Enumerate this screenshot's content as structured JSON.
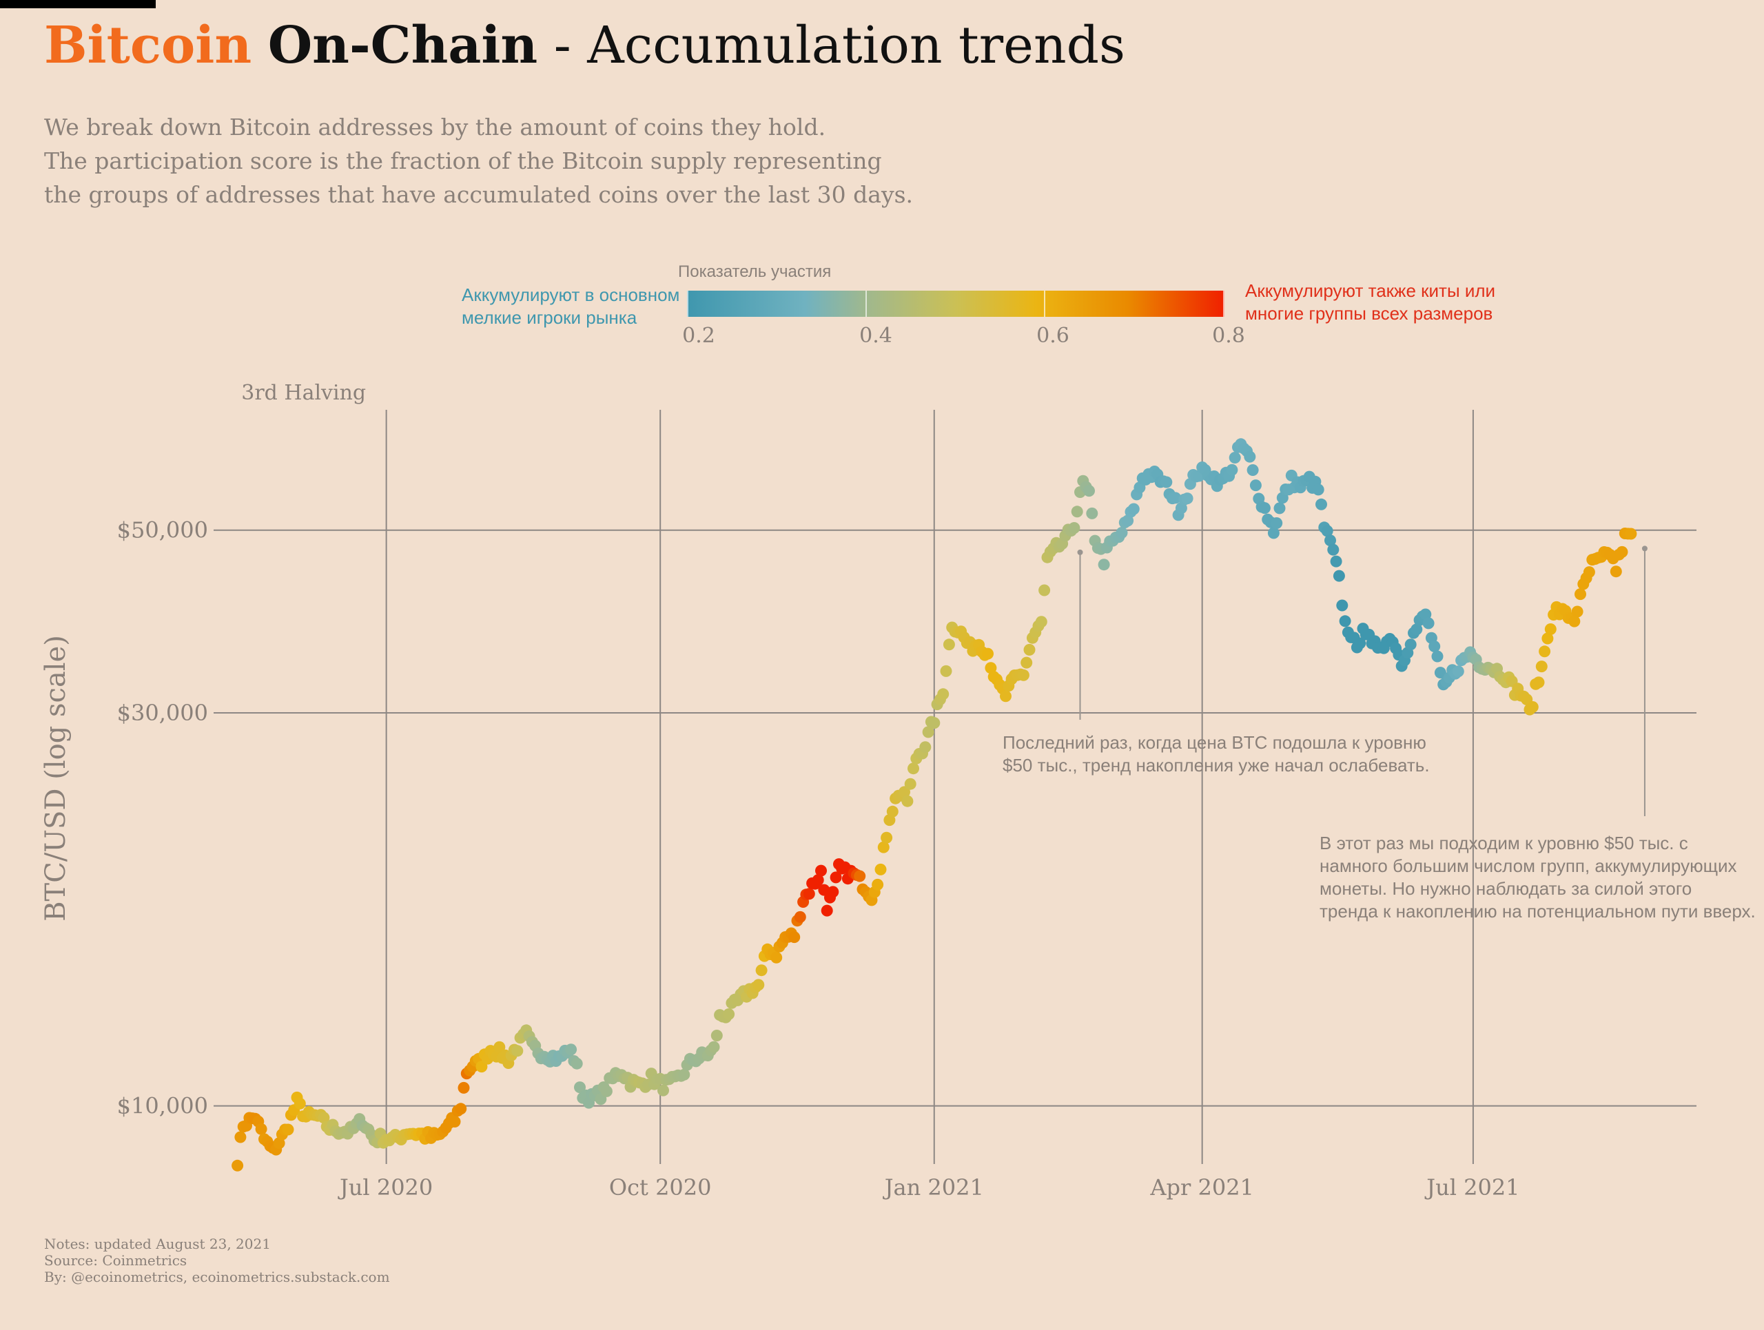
{
  "header": {
    "title_brand": "Bitcoin",
    "title_onchain": "On-Chain",
    "title_rest": "- Accumulation trends",
    "subtitle_lines": [
      "We break down Bitcoin addresses by the amount of coins they hold.",
      "The participation score is the fraction of the Bitcoin supply representing",
      "the groups of addresses that have accumulated coins over the last 30 days."
    ]
  },
  "legend": {
    "title": "Показатель участия",
    "left_lines": [
      "Аккумулируют в основном",
      "мелкие игроки рынка"
    ],
    "right_lines": [
      "Аккумулируют также киты или",
      "многие группы всех размеров"
    ],
    "ticks": [
      "0.2",
      "0.4",
      "0.6",
      "0.8"
    ]
  },
  "chart_data": {
    "type": "scatter",
    "title": "Bitcoin On-Chain - Accumulation trends",
    "ylabel": "BTC/USD (log scale)",
    "y_scale": "log",
    "ylim": [
      8500,
      70000
    ],
    "yticks": [
      {
        "value": 10000,
        "label": "$10,000"
      },
      {
        "value": 30000,
        "label": "$30,000"
      },
      {
        "value": 50000,
        "label": "$50,000"
      }
    ],
    "xlim": [
      "2020-05-04",
      "2021-09-14"
    ],
    "xticks": [
      {
        "date": "2020-07-01",
        "label": "Jul 2020"
      },
      {
        "date": "2020-10-01",
        "label": "Oct 2020"
      },
      {
        "date": "2021-01-01",
        "label": "Jan 2021"
      },
      {
        "date": "2021-04-01",
        "label": "Apr 2021"
      },
      {
        "date": "2021-07-01",
        "label": "Jul 2021"
      }
    ],
    "color_scale": {
      "name": "Показатель участия",
      "min": 0.2,
      "max": 0.8,
      "colors": [
        "#3f97ae",
        "#70b2c0",
        "#9fb88f",
        "#cbc055",
        "#ebb513",
        "#ea8a00",
        "#f02000"
      ]
    },
    "annotations": [
      {
        "label": "3rd Halving",
        "date": "2020-05-11"
      },
      {
        "date": "2021-02-19",
        "value": 47000,
        "text_lines": [
          "Последний раз, когда цена BTC подошла к уровню",
          "$50 тыс., тренд накопления уже начал ослабевать."
        ]
      },
      {
        "date": "2021-08-23",
        "value": 47500,
        "text_lines": [
          "В этот раз мы подходим к уровню $50 тыс. с",
          "намного большим числом групп, аккумулирующих",
          "монеты. Но нужно наблюдать за силой этого",
          "тренда к накоплению на потенциальном пути вверх."
        ]
      }
    ],
    "anchors": [
      [
        "2020-05-12",
        8600,
        0.66
      ],
      [
        "2020-05-14",
        9500,
        0.67
      ],
      [
        "2020-05-18",
        9700,
        0.69
      ],
      [
        "2020-05-21",
        9100,
        0.66
      ],
      [
        "2020-05-24",
        8800,
        0.68
      ],
      [
        "2020-05-28",
        9300,
        0.64
      ],
      [
        "2020-06-01",
        10100,
        0.6
      ],
      [
        "2020-06-04",
        9700,
        0.58
      ],
      [
        "2020-06-08",
        9700,
        0.55
      ],
      [
        "2020-06-12",
        9400,
        0.5
      ],
      [
        "2020-06-15",
        9350,
        0.46
      ],
      [
        "2020-06-19",
        9300,
        0.44
      ],
      [
        "2020-06-23",
        9600,
        0.4
      ],
      [
        "2020-06-27",
        9100,
        0.44
      ],
      [
        "2020-06-30",
        9150,
        0.5
      ],
      [
        "2020-07-04",
        9100,
        0.52
      ],
      [
        "2020-07-08",
        9300,
        0.55
      ],
      [
        "2020-07-12",
        9250,
        0.6
      ],
      [
        "2020-07-16",
        9150,
        0.65
      ],
      [
        "2020-07-19",
        9200,
        0.66
      ],
      [
        "2020-07-21",
        9400,
        0.68
      ],
      [
        "2020-07-24",
        9600,
        0.68
      ],
      [
        "2020-07-26",
        10000,
        0.7
      ],
      [
        "2020-07-28",
        11000,
        0.72
      ],
      [
        "2020-07-30",
        11200,
        0.68
      ],
      [
        "2020-08-02",
        11300,
        0.6
      ],
      [
        "2020-08-05",
        11700,
        0.58
      ],
      [
        "2020-08-08",
        11600,
        0.57
      ],
      [
        "2020-08-11",
        11400,
        0.56
      ],
      [
        "2020-08-14",
        11800,
        0.5
      ],
      [
        "2020-08-17",
        12200,
        0.47
      ],
      [
        "2020-08-19",
        11800,
        0.42
      ],
      [
        "2020-08-22",
        11600,
        0.37
      ],
      [
        "2020-08-25",
        11500,
        0.35
      ],
      [
        "2020-08-28",
        11400,
        0.33
      ],
      [
        "2020-08-31",
        11700,
        0.35
      ],
      [
        "2020-09-03",
        11300,
        0.38
      ],
      [
        "2020-09-04",
        10400,
        0.38
      ],
      [
        "2020-09-08",
        10200,
        0.37
      ],
      [
        "2020-09-12",
        10400,
        0.4
      ],
      [
        "2020-09-16",
        10900,
        0.41
      ],
      [
        "2020-09-18",
        11000,
        0.42
      ],
      [
        "2020-09-21",
        10700,
        0.45
      ],
      [
        "2020-09-24",
        10600,
        0.47
      ],
      [
        "2020-09-28",
        10800,
        0.45
      ],
      [
        "2020-10-02",
        10600,
        0.44
      ],
      [
        "2020-10-06",
        10700,
        0.42
      ],
      [
        "2020-10-09",
        11000,
        0.41
      ],
      [
        "2020-10-12",
        11400,
        0.39
      ],
      [
        "2020-10-16",
        11500,
        0.4
      ],
      [
        "2020-10-19",
        11700,
        0.42
      ],
      [
        "2020-10-21",
        12800,
        0.46
      ],
      [
        "2020-10-24",
        13000,
        0.47
      ],
      [
        "2020-10-28",
        13500,
        0.48
      ],
      [
        "2020-10-31",
        13800,
        0.52
      ],
      [
        "2020-11-03",
        14000,
        0.55
      ],
      [
        "2020-11-06",
        15500,
        0.62
      ],
      [
        "2020-11-09",
        15300,
        0.64
      ],
      [
        "2020-11-12",
        16000,
        0.68
      ],
      [
        "2020-11-15",
        16100,
        0.7
      ],
      [
        "2020-11-18",
        17800,
        0.76
      ],
      [
        "2020-11-21",
        18500,
        0.8
      ],
      [
        "2020-11-24",
        19200,
        0.82
      ],
      [
        "2020-11-26",
        17500,
        0.84
      ],
      [
        "2020-11-28",
        18000,
        0.86
      ],
      [
        "2020-11-30",
        19400,
        0.88
      ],
      [
        "2020-12-02",
        19200,
        0.86
      ],
      [
        "2020-12-05",
        19100,
        0.78
      ],
      [
        "2020-12-08",
        18600,
        0.7
      ],
      [
        "2020-12-11",
        18000,
        0.65
      ],
      [
        "2020-12-14",
        19300,
        0.6
      ],
      [
        "2020-12-17",
        22500,
        0.56
      ],
      [
        "2020-12-20",
        24000,
        0.54
      ],
      [
        "2020-12-23",
        23500,
        0.52
      ],
      [
        "2020-12-26",
        26500,
        0.5
      ],
      [
        "2020-12-29",
        27500,
        0.48
      ],
      [
        "2021-01-01",
        29500,
        0.47
      ],
      [
        "2021-01-04",
        32000,
        0.5
      ],
      [
        "2021-01-07",
        38500,
        0.52
      ],
      [
        "2021-01-10",
        37500,
        0.55
      ],
      [
        "2021-01-13",
        36000,
        0.56
      ],
      [
        "2021-01-16",
        36500,
        0.58
      ],
      [
        "2021-01-19",
        35500,
        0.6
      ],
      [
        "2021-01-22",
        32500,
        0.6
      ],
      [
        "2021-01-25",
        31500,
        0.58
      ],
      [
        "2021-01-28",
        33000,
        0.56
      ],
      [
        "2021-01-31",
        33500,
        0.55
      ],
      [
        "2021-02-03",
        37000,
        0.52
      ],
      [
        "2021-02-06",
        38500,
        0.5
      ],
      [
        "2021-02-08",
        46000,
        0.48
      ],
      [
        "2021-02-11",
        47500,
        0.46
      ],
      [
        "2021-02-14",
        48500,
        0.44
      ],
      [
        "2021-02-17",
        51000,
        0.42
      ],
      [
        "2021-02-20",
        57000,
        0.4
      ],
      [
        "2021-02-22",
        55000,
        0.38
      ],
      [
        "2021-02-24",
        49000,
        0.38
      ],
      [
        "2021-02-27",
        46000,
        0.36
      ],
      [
        "2021-03-01",
        48000,
        0.35
      ],
      [
        "2021-03-04",
        49000,
        0.33
      ],
      [
        "2021-03-08",
        52000,
        0.3
      ],
      [
        "2021-03-12",
        58000,
        0.28
      ],
      [
        "2021-03-15",
        58500,
        0.28
      ],
      [
        "2021-03-18",
        57500,
        0.27
      ],
      [
        "2021-03-21",
        56000,
        0.28
      ],
      [
        "2021-03-24",
        53000,
        0.29
      ],
      [
        "2021-03-27",
        55500,
        0.3
      ],
      [
        "2021-03-30",
        58700,
        0.29
      ],
      [
        "2021-04-03",
        58800,
        0.28
      ],
      [
        "2021-04-07",
        57000,
        0.27
      ],
      [
        "2021-04-11",
        59500,
        0.28
      ],
      [
        "2021-04-14",
        63500,
        0.29
      ],
      [
        "2021-04-17",
        61000,
        0.28
      ],
      [
        "2021-04-19",
        56500,
        0.27
      ],
      [
        "2021-04-22",
        53000,
        0.26
      ],
      [
        "2021-04-25",
        50000,
        0.26
      ],
      [
        "2021-04-28",
        54500,
        0.27
      ],
      [
        "2021-05-01",
        57500,
        0.28
      ],
      [
        "2021-05-04",
        56500,
        0.27
      ],
      [
        "2021-05-07",
        57500,
        0.26
      ],
      [
        "2021-05-10",
        56000,
        0.26
      ],
      [
        "2021-05-12",
        50500,
        0.24
      ],
      [
        "2021-05-15",
        47000,
        0.22
      ],
      [
        "2021-05-17",
        43500,
        0.2
      ],
      [
        "2021-05-19",
        38500,
        0.18
      ],
      [
        "2021-05-21",
        37500,
        0.18
      ],
      [
        "2021-05-23",
        35500,
        0.17
      ],
      [
        "2021-05-25",
        38500,
        0.18
      ],
      [
        "2021-05-28",
        36000,
        0.18
      ],
      [
        "2021-06-01",
        36500,
        0.19
      ],
      [
        "2021-06-04",
        37000,
        0.2
      ],
      [
        "2021-06-07",
        34500,
        0.21
      ],
      [
        "2021-06-10",
        36800,
        0.23
      ],
      [
        "2021-06-13",
        38500,
        0.24
      ],
      [
        "2021-06-15",
        39500,
        0.25
      ],
      [
        "2021-06-18",
        36000,
        0.26
      ],
      [
        "2021-06-21",
        32000,
        0.26
      ],
      [
        "2021-06-24",
        33500,
        0.28
      ],
      [
        "2021-06-27",
        34500,
        0.3
      ],
      [
        "2021-06-30",
        35500,
        0.33
      ],
      [
        "2021-07-03",
        34500,
        0.38
      ],
      [
        "2021-07-06",
        34200,
        0.42
      ],
      [
        "2021-07-09",
        33800,
        0.46
      ],
      [
        "2021-07-12",
        33200,
        0.5
      ],
      [
        "2021-07-15",
        32000,
        0.54
      ],
      [
        "2021-07-18",
        31500,
        0.56
      ],
      [
        "2021-07-20",
        30000,
        0.57
      ],
      [
        "2021-07-22",
        32000,
        0.58
      ],
      [
        "2021-07-24",
        34000,
        0.58
      ],
      [
        "2021-07-26",
        37500,
        0.6
      ],
      [
        "2021-07-29",
        40000,
        0.61
      ],
      [
        "2021-08-01",
        39500,
        0.62
      ],
      [
        "2021-08-04",
        39000,
        0.63
      ],
      [
        "2021-08-07",
        42500,
        0.64
      ],
      [
        "2021-08-10",
        45500,
        0.64
      ],
      [
        "2021-08-13",
        46000,
        0.64
      ],
      [
        "2021-08-16",
        47000,
        0.65
      ],
      [
        "2021-08-18",
        44800,
        0.65
      ],
      [
        "2021-08-21",
        49000,
        0.65
      ],
      [
        "2021-08-23",
        49500,
        0.64
      ]
    ]
  },
  "notes": [
    "Notes: updated August 23, 2021",
    "Source: Coinmetrics",
    "By: @ecoinometrics, ecoinometrics.substack.com"
  ]
}
